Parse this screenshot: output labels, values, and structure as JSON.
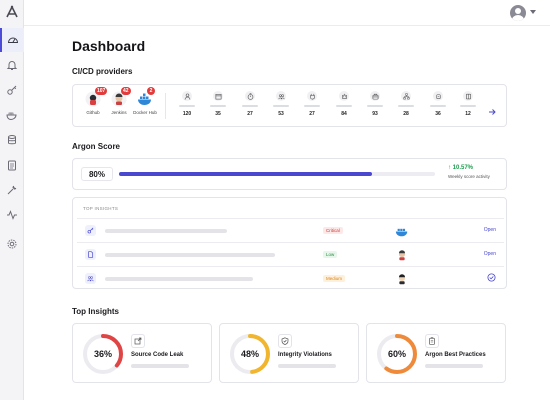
{
  "header": {
    "title": "Dashboard"
  },
  "sidebar": {
    "items": [
      {
        "icon": "dashboard-icon",
        "active": true
      },
      {
        "icon": "bell-icon",
        "active": false
      },
      {
        "icon": "key-icon",
        "active": false
      },
      {
        "icon": "docker-icon",
        "active": false
      },
      {
        "icon": "database-icon",
        "active": false
      },
      {
        "icon": "clipboard-icon",
        "active": false
      },
      {
        "icon": "wrench-icon",
        "active": false
      },
      {
        "icon": "pulse-icon",
        "active": false
      },
      {
        "icon": "gear-icon",
        "active": false
      }
    ]
  },
  "cicd": {
    "title": "CI/CD providers",
    "providers": [
      {
        "label": "Github",
        "badge": "107",
        "icon": "github-icon"
      },
      {
        "label": "Jenkins",
        "badge": "42",
        "icon": "jenkins-icon"
      },
      {
        "label": "Docker Hub",
        "badge": "2",
        "icon": "docker-hub-icon"
      }
    ],
    "metrics": [
      {
        "icon": "user-icon",
        "value": "120"
      },
      {
        "icon": "calendar-icon",
        "value": "35"
      },
      {
        "icon": "timer-icon",
        "value": "27"
      },
      {
        "icon": "users-icon",
        "value": "53"
      },
      {
        "icon": "plug-icon",
        "value": "27"
      },
      {
        "icon": "robot-icon",
        "value": "84"
      },
      {
        "icon": "package-icon",
        "value": "93"
      },
      {
        "icon": "org-icon",
        "value": "28"
      },
      {
        "icon": "bot-icon",
        "value": "36"
      },
      {
        "icon": "book-icon",
        "value": "12"
      }
    ]
  },
  "argon": {
    "title": "Argon Score",
    "score_label": "80%",
    "score_fraction": 0.8,
    "change": "10.57%",
    "change_caption": "Weekly score activity",
    "accent": "#4a48cf"
  },
  "top_insights_table": {
    "header": "TOP INSIGHTS",
    "rows": [
      {
        "icon": "key-icon",
        "severity": "Critical",
        "provider": "docker-icon",
        "action": "Open"
      },
      {
        "icon": "file-icon",
        "severity": "Low",
        "provider": "jenkins-icon",
        "action": "Open"
      },
      {
        "icon": "users-icon",
        "severity": "Medium",
        "provider": "jenkins-icon",
        "action": "check-icon"
      }
    ]
  },
  "top_insights": {
    "title": "Top Insights",
    "cards": [
      {
        "percent_label": "36%",
        "percent": 0.36,
        "title": "Source Code Leak",
        "color": "#e04545",
        "icon": "share-icon"
      },
      {
        "percent_label": "48%",
        "percent": 0.48,
        "title": "Integrity Violations",
        "color": "#f1b62e",
        "icon": "shield-check-icon"
      },
      {
        "percent_label": "60%",
        "percent": 0.6,
        "title": "Argon Best Practices",
        "color": "#ee8a3a",
        "icon": "clipboard-icon"
      }
    ]
  }
}
